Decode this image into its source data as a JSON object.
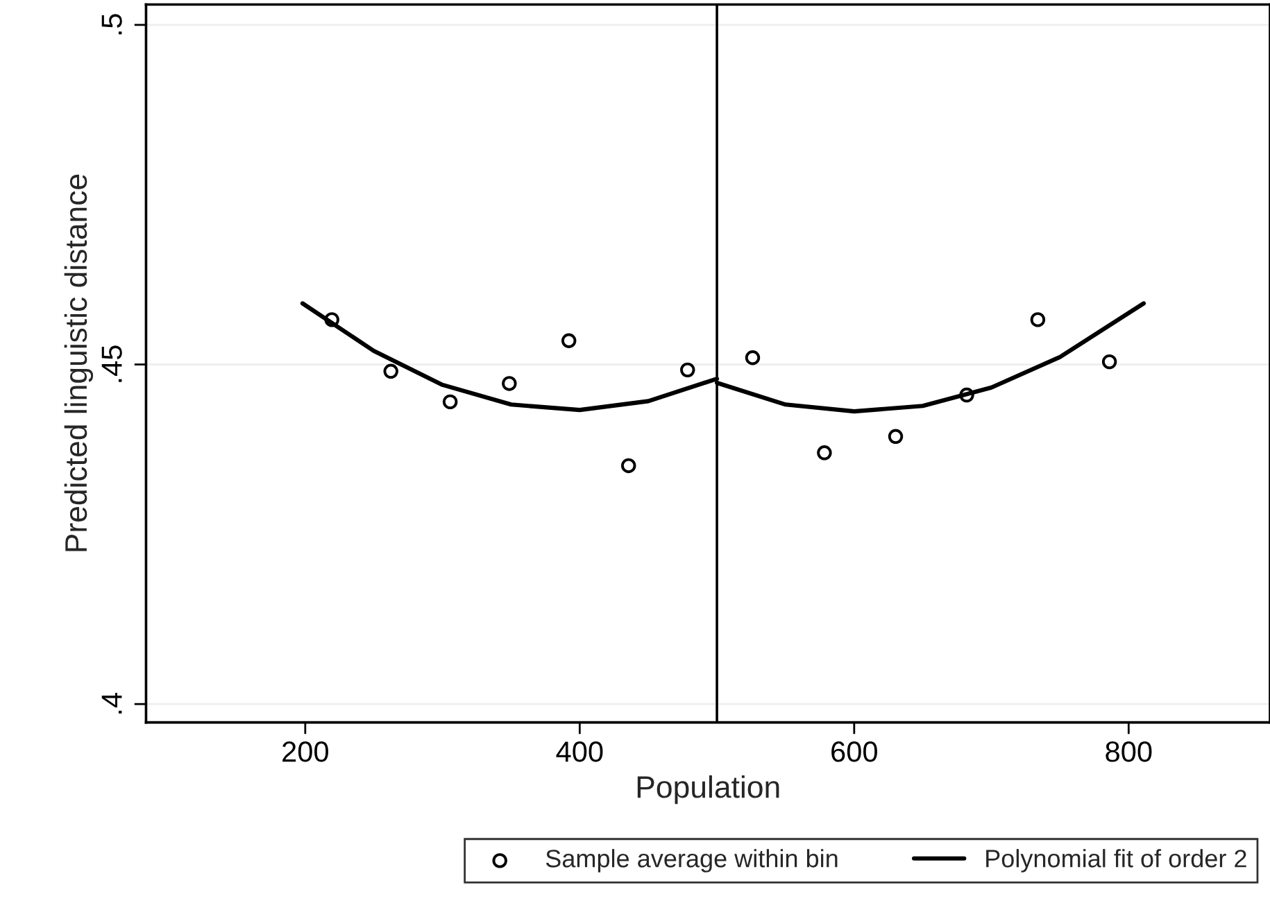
{
  "chart_data": {
    "type": "scatter",
    "xlabel": "Population",
    "ylabel": "Predicted linguistic distance",
    "xlim": [
      84,
      903
    ],
    "ylim": [
      0.3973,
      0.503
    ],
    "xticks": [
      200,
      400,
      600,
      800
    ],
    "yticks": [
      {
        "value": 0.4,
        "label": ".4"
      },
      {
        "value": 0.45,
        "label": ".45"
      },
      {
        "value": 0.5,
        "label": ".5"
      }
    ],
    "grid": "y",
    "legend": "bottom",
    "marker": "circle",
    "ref_lines": [
      {
        "axis": "x",
        "value": 500,
        "color": "#000000"
      }
    ],
    "series": [
      {
        "name": "Sample average within bin",
        "color": "#000000",
        "x": [
          219.4,
          262.4,
          305.6,
          348.7,
          392.1,
          435.6,
          478.6,
          526,
          578.3,
          630.2,
          682,
          733.8,
          786
        ],
        "values": [
          0.4566,
          0.449,
          0.4445,
          0.4472,
          0.4535,
          0.4351,
          0.4492,
          0.451,
          0.437,
          0.4394,
          0.4455,
          0.4566,
          0.4504
        ]
      },
      {
        "name": "Polynomial fit of order 2",
        "type": "line",
        "color": "#000000",
        "marker": "none",
        "x": [
          198,
          250,
          300,
          350,
          400,
          450,
          500
        ],
        "values": [
          0.459,
          0.452,
          0.447,
          0.4441,
          0.4433,
          0.4446,
          0.4479
        ]
      },
      {
        "type": "line",
        "color": "#000000",
        "marker": "none",
        "x": [
          500,
          550,
          600,
          650,
          700,
          750,
          811
        ],
        "values": [
          0.4473,
          0.4441,
          0.4431,
          0.4439,
          0.4466,
          0.4511,
          0.459
        ]
      }
    ]
  }
}
